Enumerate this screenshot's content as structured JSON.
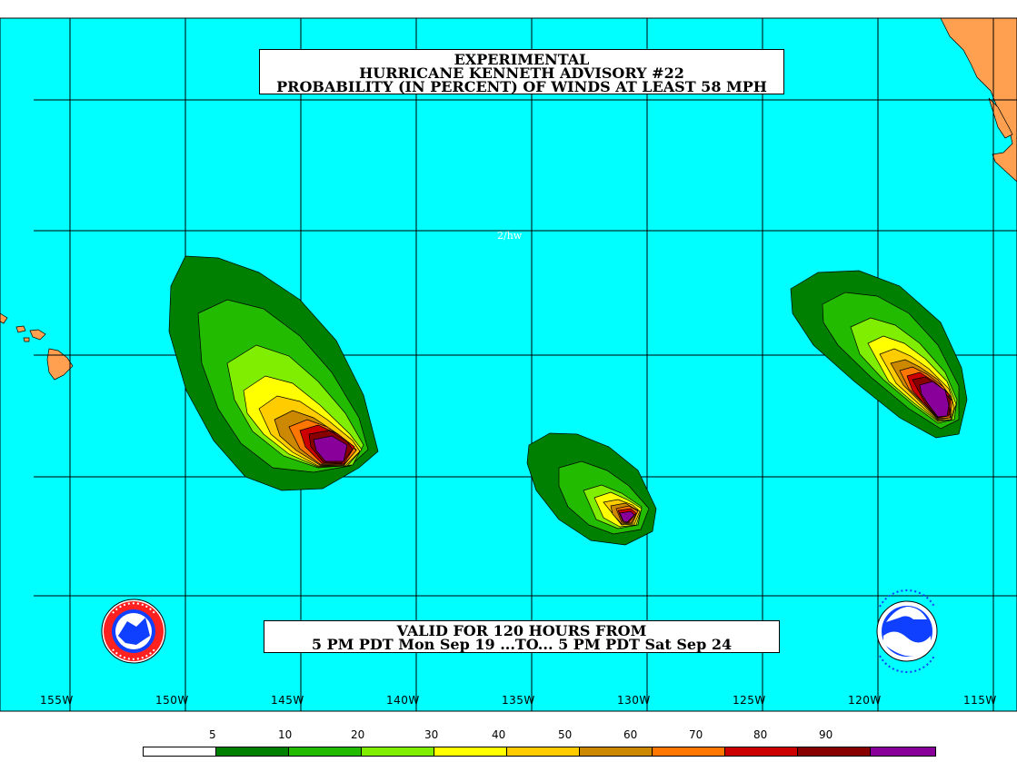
{
  "title": {
    "line1": "EXPERIMENTAL",
    "line2": "HURRICANE KENNETH ADVISORY #22",
    "line3": "PROBABILITY (IN PERCENT) OF WINDS AT LEAST 58 MPH"
  },
  "valid": {
    "line1": "VALID FOR 120 HOURS FROM",
    "line2": "5 PM PDT Mon Sep 19 ...TO... 5 PM PDT Sat Sep 24"
  },
  "analyst_tag": "2/hw",
  "longitude_labels": [
    "155W",
    "150W",
    "145W",
    "140W",
    "135W",
    "130W",
    "125W",
    "120W",
    "115W"
  ],
  "legend": {
    "labels": [
      "5",
      "10",
      "20",
      "30",
      "40",
      "50",
      "60",
      "70",
      "80",
      "90"
    ],
    "colors": [
      "#ffffff",
      "#008000",
      "#22bb00",
      "#80ee00",
      "#ffff00",
      "#ffcc00",
      "#cc8800",
      "#ff7700",
      "#cc0000",
      "#880000",
      "#880099"
    ]
  },
  "colors": {
    "ocean": "#00ffff",
    "land": "#ffa050",
    "grid": "#000000"
  },
  "logos": {
    "left": "nws-logo",
    "right": "noaa-logo"
  }
}
